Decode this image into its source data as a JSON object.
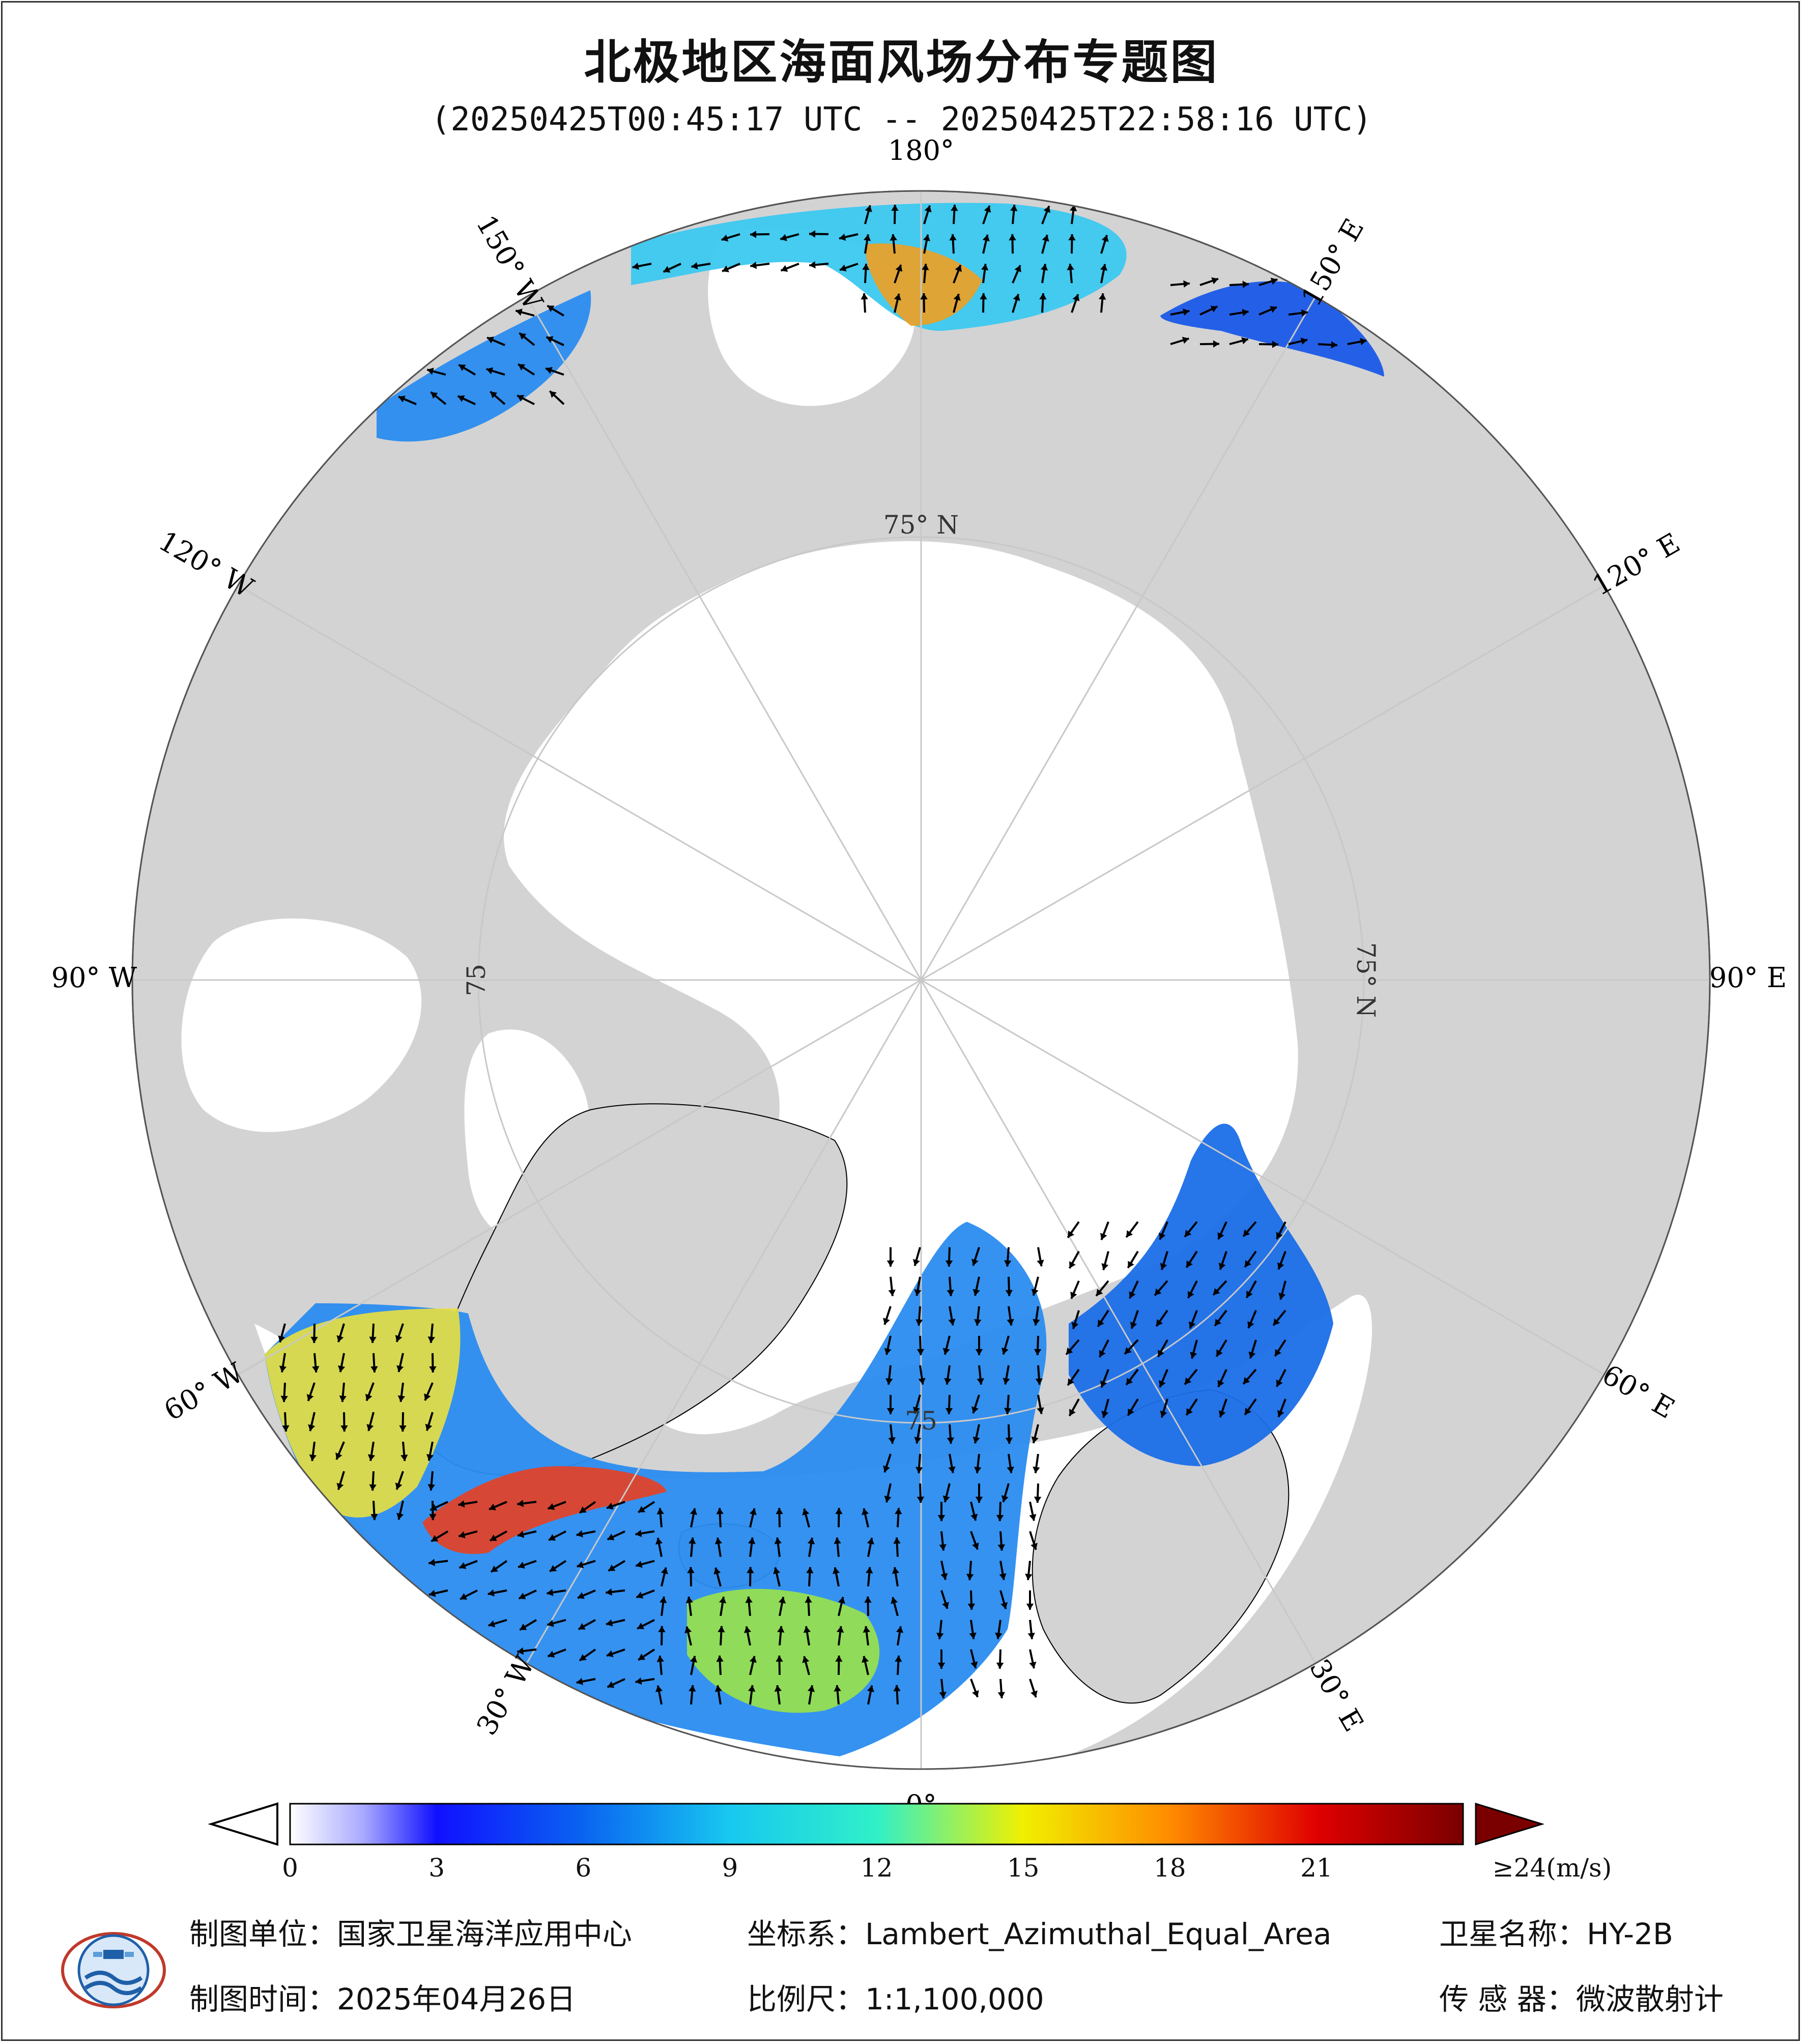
{
  "title": "北极地区海面风场分布专题图",
  "subtitle": "(20250425T00:45:17 UTC -- 20250425T22:58:16 UTC)",
  "map": {
    "projection": "Lambert_Azimuthal_Equal_Area",
    "colors": {
      "land": "#d3d3d3",
      "ice": "#ffffff",
      "ocean_disk": "#ffffff",
      "grid": "#c8c8c8",
      "arrow": "#000000"
    },
    "longitude_labels": [
      {
        "text": "180°",
        "lon": 180
      },
      {
        "text": "150° E",
        "lon": 150
      },
      {
        "text": "120° E",
        "lon": 120
      },
      {
        "text": "90° E",
        "lon": 90
      },
      {
        "text": "60° E",
        "lon": 60
      },
      {
        "text": "30° E",
        "lon": 30
      },
      {
        "text": "0°",
        "lon": 0
      },
      {
        "text": "30° W",
        "lon": -30
      },
      {
        "text": "60° W",
        "lon": -60
      },
      {
        "text": "90° W",
        "lon": -90
      },
      {
        "text": "120° W",
        "lon": -120
      },
      {
        "text": "150° W",
        "lon": -150
      }
    ],
    "latitude_labels": [
      {
        "text": "75° N",
        "lon": 180
      },
      {
        "text": "75° N",
        "lon": 90
      },
      {
        "text": "75",
        "lon": -90
      },
      {
        "text": "75",
        "lon": 0
      }
    ]
  },
  "colorbar": {
    "ticks": [
      "0",
      "3",
      "6",
      "9",
      "12",
      "15",
      "18",
      "21",
      "≥24(m/s)"
    ],
    "values": [
      0,
      3,
      6,
      9,
      12,
      15,
      18,
      21,
      24
    ],
    "unit": "m/s",
    "stops": [
      {
        "v": 0,
        "c": "#ffffff"
      },
      {
        "v": 1.5,
        "c": "#a9a9ff"
      },
      {
        "v": 3,
        "c": "#1010ff"
      },
      {
        "v": 6,
        "c": "#0a64f0"
      },
      {
        "v": 9,
        "c": "#18c8f0"
      },
      {
        "v": 12,
        "c": "#30f0c8"
      },
      {
        "v": 15,
        "c": "#f0f000"
      },
      {
        "v": 18,
        "c": "#ff8c00"
      },
      {
        "v": 21,
        "c": "#e00000"
      },
      {
        "v": 24,
        "c": "#7a0000"
      }
    ]
  },
  "footer": {
    "org_label": "制图单位：国家卫星海洋应用中心",
    "date_label": "制图时间：2025年04月26日",
    "crs_label": "坐标系：Lambert_Azimuthal_Equal_Area",
    "scale_label": "比例尺：1:1,100,000",
    "satellite_label": "卫星名称：HY-2B",
    "sensor_label": "传 感 器：微波散射计"
  }
}
